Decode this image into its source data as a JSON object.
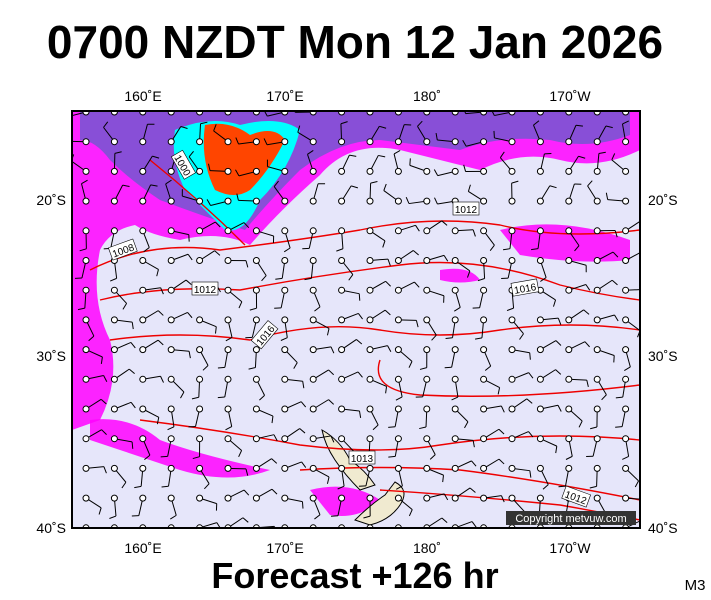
{
  "header": {
    "title": "0700 NZDT Mon 12 Jan 2026"
  },
  "map": {
    "lon_labels": [
      "160˚E",
      "170˚E",
      "180˚",
      "170˚W"
    ],
    "lat_labels": [
      "20˚S",
      "30˚S",
      "40˚S"
    ],
    "contour_labels": [
      "1000",
      "1008",
      "1012",
      "1016",
      "1012",
      "1016",
      "1013",
      "1012"
    ],
    "copyright": "Copyright metvuw.com"
  },
  "footer": {
    "text": "Forecast +126 hr",
    "code": "M3"
  }
}
